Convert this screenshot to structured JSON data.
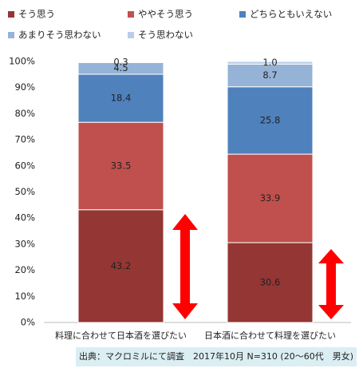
{
  "chart_data": {
    "type": "stacked_bar",
    "categories": [
      "料理に合わせて日本酒を選びたい",
      "日本酒に合わせて料理を選びたい"
    ],
    "series": [
      {
        "name": "そう思う",
        "color": "#943634",
        "values": [
          43.2,
          30.6
        ]
      },
      {
        "name": "ややそう思う",
        "color": "#c0504d",
        "values": [
          33.5,
          33.9
        ]
      },
      {
        "name": "どちらともいえない",
        "color": "#4f81bd",
        "values": [
          18.4,
          25.8
        ]
      },
      {
        "name": "あまりそう思わない",
        "color": "#95b3d7",
        "values": [
          4.5,
          8.7
        ]
      },
      {
        "name": "そう思わない",
        "color": "#b9cde5",
        "values": [
          0.3,
          1.0
        ],
        "value_labels": [
          "0.3",
          "1.0"
        ]
      }
    ],
    "ylim": [
      0,
      100
    ],
    "yticks": [
      {
        "value": 0,
        "label": "0%"
      },
      {
        "value": 10,
        "label": "10%"
      },
      {
        "value": 20,
        "label": "20%"
      },
      {
        "value": 30,
        "label": "30%"
      },
      {
        "value": 40,
        "label": "40%"
      },
      {
        "value": 50,
        "label": "50%"
      },
      {
        "value": 60,
        "label": "60%"
      },
      {
        "value": 70,
        "label": "70%"
      },
      {
        "value": 80,
        "label": "80%"
      },
      {
        "value": 90,
        "label": "90%"
      },
      {
        "value": 100,
        "label": "100%"
      }
    ],
    "source": "出典：マクロミルにて調査　2017年10月 N=310 (20～60代　男女)"
  }
}
